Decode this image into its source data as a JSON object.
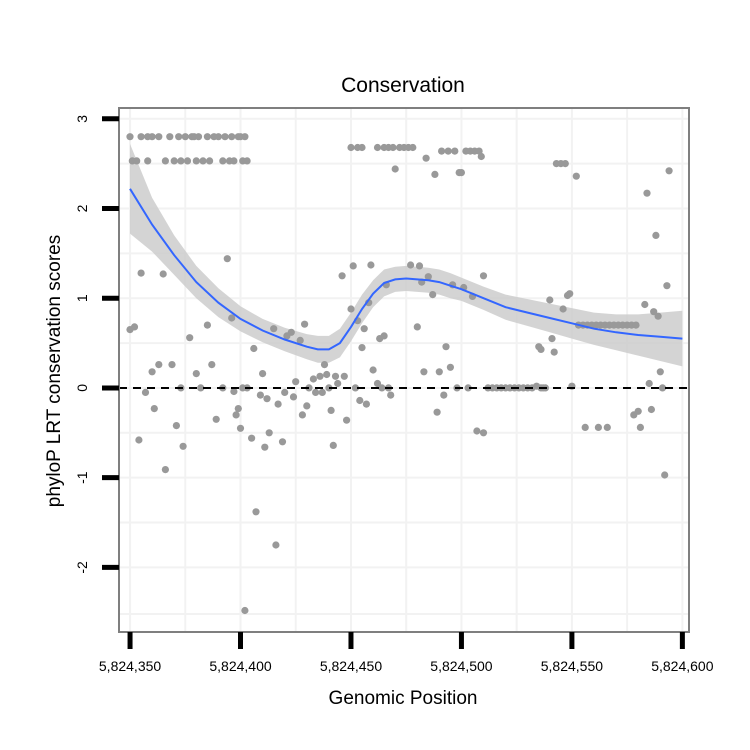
{
  "chart_data": {
    "type": "scatter",
    "title": "Conservation",
    "xlabel": "Genomic Position",
    "ylabel": "phyloP LRT conservation scores",
    "xlim": [
      5824345,
      5824603
    ],
    "ylim": [
      -2.72,
      3.12
    ],
    "grid": true,
    "x_ticks": [
      5824350,
      5824400,
      5824450,
      5824500,
      5824550,
      5824600
    ],
    "x_tick_labels": [
      "5,824,350",
      "5,824,400",
      "5,824,450",
      "5,824,500",
      "5,824,550",
      "5,824,600"
    ],
    "y_ticks": [
      -2,
      -1,
      0,
      1,
      2,
      3
    ],
    "y_tick_labels": [
      "-2",
      "-1",
      "0",
      "1",
      "2",
      "3"
    ],
    "reference_line": {
      "y": 0,
      "style": "dashed"
    },
    "colors": {
      "points": "#999999",
      "smooth_line": "#3366ff",
      "ribbon": "#cccccc",
      "panel_border": "#7f7f7f",
      "grid": "#f2f2f2"
    },
    "series": [
      {
        "name": "scores",
        "kind": "points",
        "points": [
          [
            5824350,
            2.8
          ],
          [
            5824351,
            2.53
          ],
          [
            5824353,
            2.53
          ],
          [
            5824355,
            2.8
          ],
          [
            5824358,
            2.53
          ],
          [
            5824358,
            2.8
          ],
          [
            5824360,
            2.8
          ],
          [
            5824363,
            2.8
          ],
          [
            5824366,
            2.53
          ],
          [
            5824368,
            2.8
          ],
          [
            5824370,
            2.53
          ],
          [
            5824372,
            2.8
          ],
          [
            5824373,
            2.53
          ],
          [
            5824375,
            2.8
          ],
          [
            5824376,
            2.53
          ],
          [
            5824378,
            2.8
          ],
          [
            5824379,
            2.8
          ],
          [
            5824380,
            2.53
          ],
          [
            5824381,
            2.8
          ],
          [
            5824383,
            2.53
          ],
          [
            5824385,
            2.8
          ],
          [
            5824386,
            2.53
          ],
          [
            5824388,
            2.8
          ],
          [
            5824390,
            2.8
          ],
          [
            5824392,
            2.53
          ],
          [
            5824393,
            2.8
          ],
          [
            5824395,
            2.53
          ],
          [
            5824396,
            2.8
          ],
          [
            5824397,
            2.53
          ],
          [
            5824399,
            2.8
          ],
          [
            5824400,
            2.8
          ],
          [
            5824401,
            2.53
          ],
          [
            5824402,
            2.8
          ],
          [
            5824403,
            2.53
          ],
          [
            5824350,
            0.65
          ],
          [
            5824352,
            0.68
          ],
          [
            5824355,
            1.28
          ],
          [
            5824354,
            -0.58
          ],
          [
            5824357,
            -0.05
          ],
          [
            5824360,
            0.18
          ],
          [
            5824361,
            -0.23
          ],
          [
            5824363,
            0.26
          ],
          [
            5824365,
            1.27
          ],
          [
            5824366,
            -0.91
          ],
          [
            5824369,
            0.26
          ],
          [
            5824371,
            -0.42
          ],
          [
            5824373,
            0.0
          ],
          [
            5824374,
            -0.65
          ],
          [
            5824377,
            0.56
          ],
          [
            5824380,
            0.16
          ],
          [
            5824382,
            0.0
          ],
          [
            5824385,
            0.7
          ],
          [
            5824387,
            0.26
          ],
          [
            5824389,
            -0.35
          ],
          [
            5824392,
            0.0
          ],
          [
            5824394,
            1.44
          ],
          [
            5824396,
            0.78
          ],
          [
            5824397,
            -0.04
          ],
          [
            5824398,
            -0.3
          ],
          [
            5824399,
            -0.23
          ],
          [
            5824400,
            -0.45
          ],
          [
            5824401,
            0.0
          ],
          [
            5824402,
            -2.48
          ],
          [
            5824403,
            0.0
          ],
          [
            5824405,
            -0.56
          ],
          [
            5824406,
            0.44
          ],
          [
            5824407,
            -1.38
          ],
          [
            5824409,
            -0.08
          ],
          [
            5824410,
            0.16
          ],
          [
            5824411,
            -0.66
          ],
          [
            5824412,
            -0.12
          ],
          [
            5824413,
            -0.5
          ],
          [
            5824415,
            0.66
          ],
          [
            5824416,
            -1.75
          ],
          [
            5824417,
            -0.18
          ],
          [
            5824419,
            -0.6
          ],
          [
            5824420,
            -0.05
          ],
          [
            5824421,
            0.58
          ],
          [
            5824423,
            0.62
          ],
          [
            5824424,
            -0.1
          ],
          [
            5824425,
            0.07
          ],
          [
            5824427,
            0.53
          ],
          [
            5824428,
            -0.3
          ],
          [
            5824429,
            0.71
          ],
          [
            5824430,
            -0.2
          ],
          [
            5824431,
            0.0
          ],
          [
            5824433,
            0.1
          ],
          [
            5824434,
            -0.05
          ],
          [
            5824436,
            0.13
          ],
          [
            5824437,
            -0.05
          ],
          [
            5824438,
            0.26
          ],
          [
            5824439,
            0.15
          ],
          [
            5824440,
            0.0
          ],
          [
            5824441,
            -0.25
          ],
          [
            5824442,
            -0.64
          ],
          [
            5824443,
            0.13
          ],
          [
            5824444,
            0.05
          ],
          [
            5824446,
            1.25
          ],
          [
            5824447,
            0.13
          ],
          [
            5824448,
            -0.36
          ],
          [
            5824450,
            0.88
          ],
          [
            5824451,
            1.36
          ],
          [
            5824452,
            0.0
          ],
          [
            5824453,
            0.75
          ],
          [
            5824454,
            -0.14
          ],
          [
            5824455,
            0.45
          ],
          [
            5824456,
            0.66
          ],
          [
            5824457,
            -0.18
          ],
          [
            5824458,
            0.95
          ],
          [
            5824459,
            1.37
          ],
          [
            5824460,
            0.2
          ],
          [
            5824462,
            0.05
          ],
          [
            5824463,
            0.55
          ],
          [
            5824464,
            0.0
          ],
          [
            5824465,
            0.58
          ],
          [
            5824466,
            1.15
          ],
          [
            5824467,
            0.0
          ],
          [
            5824468,
            -0.08
          ],
          [
            5824450,
            2.68
          ],
          [
            5824453,
            2.68
          ],
          [
            5824455,
            2.68
          ],
          [
            5824462,
            2.68
          ],
          [
            5824465,
            2.68
          ],
          [
            5824467,
            2.68
          ],
          [
            5824469,
            2.68
          ],
          [
            5824470,
            2.44
          ],
          [
            5824472,
            2.68
          ],
          [
            5824474,
            2.68
          ],
          [
            5824476,
            2.68
          ],
          [
            5824477,
            1.37
          ],
          [
            5824478,
            2.68
          ],
          [
            5824480,
            0.68
          ],
          [
            5824481,
            1.36
          ],
          [
            5824482,
            1.18
          ],
          [
            5824483,
            0.18
          ],
          [
            5824484,
            2.56
          ],
          [
            5824485,
            1.24
          ],
          [
            5824487,
            1.04
          ],
          [
            5824488,
            2.38
          ],
          [
            5824489,
            -0.27
          ],
          [
            5824490,
            0.18
          ],
          [
            5824491,
            2.64
          ],
          [
            5824492,
            -0.08
          ],
          [
            5824493,
            0.46
          ],
          [
            5824494,
            2.64
          ],
          [
            5824495,
            0.23
          ],
          [
            5824496,
            1.15
          ],
          [
            5824497,
            2.64
          ],
          [
            5824498,
            0.0
          ],
          [
            5824499,
            2.4
          ],
          [
            5824500,
            2.4
          ],
          [
            5824501,
            1.12
          ],
          [
            5824502,
            2.64
          ],
          [
            5824503,
            0.0
          ],
          [
            5824504,
            2.64
          ],
          [
            5824505,
            1.02
          ],
          [
            5824506,
            2.64
          ],
          [
            5824507,
            -0.48
          ],
          [
            5824508,
            2.64
          ],
          [
            5824509,
            2.58
          ],
          [
            5824510,
            1.25
          ],
          [
            5824510,
            -0.5
          ],
          [
            5824512,
            0.0
          ],
          [
            5824514,
            0.0
          ],
          [
            5824516,
            0.0
          ],
          [
            5824518,
            0.0
          ],
          [
            5824520,
            0.0
          ],
          [
            5824522,
            0.0
          ],
          [
            5824524,
            0.0
          ],
          [
            5824526,
            0.0
          ],
          [
            5824528,
            0.0
          ],
          [
            5824530,
            0.0
          ],
          [
            5824532,
            0.0
          ],
          [
            5824534,
            0.02
          ],
          [
            5824536,
            0.0
          ],
          [
            5824537,
            0.0
          ],
          [
            5824538,
            0.0
          ],
          [
            5824535,
            0.46
          ],
          [
            5824536,
            0.43
          ],
          [
            5824540,
            0.98
          ],
          [
            5824541,
            0.55
          ],
          [
            5824542,
            0.4
          ],
          [
            5824543,
            2.5
          ],
          [
            5824545,
            2.5
          ],
          [
            5824547,
            2.5
          ],
          [
            5824546,
            0.88
          ],
          [
            5824548,
            1.03
          ],
          [
            5824549,
            1.05
          ],
          [
            5824550,
            0.02
          ],
          [
            5824552,
            2.36
          ],
          [
            5824553,
            0.7
          ],
          [
            5824555,
            0.7
          ],
          [
            5824556,
            -0.44
          ],
          [
            5824557,
            0.7
          ],
          [
            5824559,
            0.7
          ],
          [
            5824561,
            0.7
          ],
          [
            5824562,
            -0.44
          ],
          [
            5824563,
            0.7
          ],
          [
            5824565,
            0.7
          ],
          [
            5824566,
            -0.44
          ],
          [
            5824567,
            0.7
          ],
          [
            5824569,
            0.7
          ],
          [
            5824571,
            0.7
          ],
          [
            5824573,
            0.7
          ],
          [
            5824575,
            0.7
          ],
          [
            5824577,
            0.7
          ],
          [
            5824578,
            -0.3
          ],
          [
            5824579,
            0.7
          ],
          [
            5824580,
            -0.26
          ],
          [
            5824581,
            -0.44
          ],
          [
            5824583,
            0.93
          ],
          [
            5824584,
            2.17
          ],
          [
            5824585,
            0.05
          ],
          [
            5824586,
            -0.24
          ],
          [
            5824587,
            0.85
          ],
          [
            5824588,
            1.7
          ],
          [
            5824589,
            0.8
          ],
          [
            5824590,
            0.18
          ],
          [
            5824591,
            0.0
          ],
          [
            5824592,
            -0.97
          ],
          [
            5824593,
            1.14
          ],
          [
            5824594,
            2.42
          ]
        ]
      },
      {
        "name": "smooth",
        "kind": "line",
        "x": [
          5824350,
          5824360,
          5824370,
          5824380,
          5824390,
          5824400,
          5824410,
          5824420,
          5824430,
          5824435,
          5824440,
          5824445,
          5824450,
          5824455,
          5824460,
          5824465,
          5824470,
          5824475,
          5824480,
          5824485,
          5824490,
          5824495,
          5824500,
          5824510,
          5824520,
          5824530,
          5824540,
          5824550,
          5824560,
          5824570,
          5824580,
          5824590,
          5824600
        ],
        "y": [
          2.22,
          1.82,
          1.48,
          1.18,
          0.95,
          0.77,
          0.64,
          0.54,
          0.46,
          0.43,
          0.43,
          0.5,
          0.68,
          0.88,
          1.05,
          1.17,
          1.21,
          1.22,
          1.21,
          1.2,
          1.18,
          1.14,
          1.1,
          1.0,
          0.9,
          0.84,
          0.78,
          0.72,
          0.66,
          0.62,
          0.59,
          0.57,
          0.55
        ],
        "lower": [
          1.72,
          1.52,
          1.26,
          1.0,
          0.79,
          0.63,
          0.51,
          0.41,
          0.32,
          0.28,
          0.28,
          0.34,
          0.52,
          0.72,
          0.9,
          1.02,
          1.07,
          1.08,
          1.07,
          1.06,
          1.04,
          1.0,
          0.97,
          0.87,
          0.76,
          0.69,
          0.62,
          0.55,
          0.48,
          0.42,
          0.36,
          0.3,
          0.24
        ],
        "upper": [
          2.72,
          2.12,
          1.7,
          1.36,
          1.11,
          0.91,
          0.77,
          0.67,
          0.6,
          0.58,
          0.58,
          0.66,
          0.84,
          1.04,
          1.2,
          1.32,
          1.35,
          1.36,
          1.35,
          1.34,
          1.32,
          1.28,
          1.23,
          1.13,
          1.04,
          0.99,
          0.94,
          0.89,
          0.84,
          0.82,
          0.82,
          0.84,
          0.86
        ]
      }
    ]
  }
}
